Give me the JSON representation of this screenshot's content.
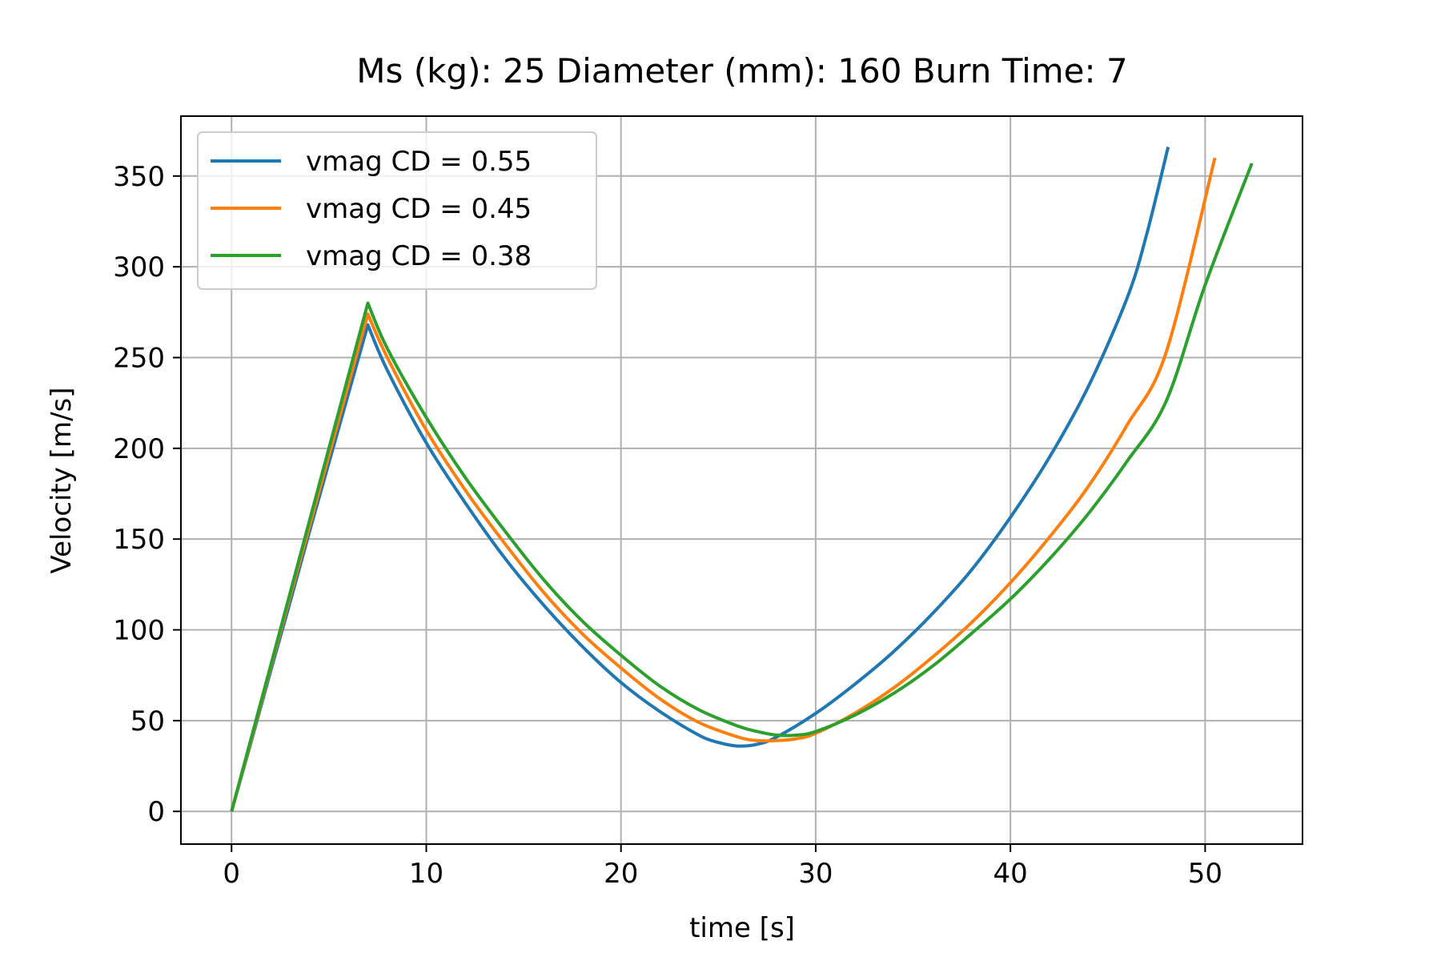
{
  "chart_data": {
    "type": "line",
    "title": "Ms (kg): 25 Diameter (mm): 160 Burn Time: 7",
    "xlabel": "time [s]",
    "ylabel": "Velocity [m/s]",
    "xlim": [
      -2.6,
      55
    ],
    "ylim": [
      -18,
      383
    ],
    "xticks": [
      0,
      10,
      20,
      30,
      40,
      50
    ],
    "yticks": [
      0,
      50,
      100,
      150,
      200,
      250,
      300,
      350
    ],
    "grid": true,
    "legend": "top-left",
    "series": [
      {
        "name": "vmag CD = 0.55",
        "color": "#1f77b4",
        "x": [
          0,
          1,
          2,
          3,
          4,
          5,
          6,
          7,
          8,
          10,
          12,
          14,
          16,
          18,
          20,
          22,
          24,
          25,
          26,
          27,
          28,
          30,
          32,
          34,
          36,
          38,
          40,
          42,
          44,
          46,
          47,
          48.1
        ],
        "y": [
          0,
          38,
          77,
          115,
          154,
          192,
          230,
          268,
          243,
          203,
          170,
          140,
          114,
          91,
          71,
          55,
          42,
          38,
          36,
          37,
          41,
          54,
          70,
          88,
          109,
          133,
          162,
          195,
          234,
          283,
          318,
          366
        ]
      },
      {
        "name": "vmag CD = 0.45",
        "color": "#ff7f0e",
        "x": [
          0,
          1,
          2,
          3,
          4,
          5,
          6,
          7,
          8,
          10,
          12,
          14,
          16,
          18,
          20,
          22,
          24,
          26,
          27,
          28,
          29,
          30,
          32,
          34,
          36,
          38,
          40,
          42,
          44,
          46,
          48,
          50.5
        ],
        "y": [
          0,
          39,
          79,
          118,
          157,
          196,
          235,
          274,
          250,
          210,
          177,
          148,
          121,
          98,
          79,
          62,
          49,
          41,
          39,
          39,
          40,
          43,
          54,
          68,
          85,
          104,
          126,
          151,
          179,
          213,
          253,
          360
        ]
      },
      {
        "name": "vmag CD = 0.38",
        "color": "#2ca02c",
        "x": [
          0,
          1,
          2,
          3,
          4,
          5,
          6,
          7,
          8,
          10,
          12,
          14,
          16,
          18,
          20,
          22,
          24,
          26,
          27,
          28,
          29,
          30,
          32,
          34,
          36,
          38,
          40,
          42,
          44,
          46,
          48,
          50,
          52.4
        ],
        "y": [
          0,
          40,
          80,
          120,
          160,
          200,
          240,
          280,
          255,
          217,
          184,
          155,
          128,
          105,
          86,
          69,
          56,
          47,
          44,
          42,
          42,
          44,
          53,
          65,
          80,
          98,
          117,
          139,
          164,
          193,
          226,
          290,
          357
        ]
      }
    ]
  }
}
